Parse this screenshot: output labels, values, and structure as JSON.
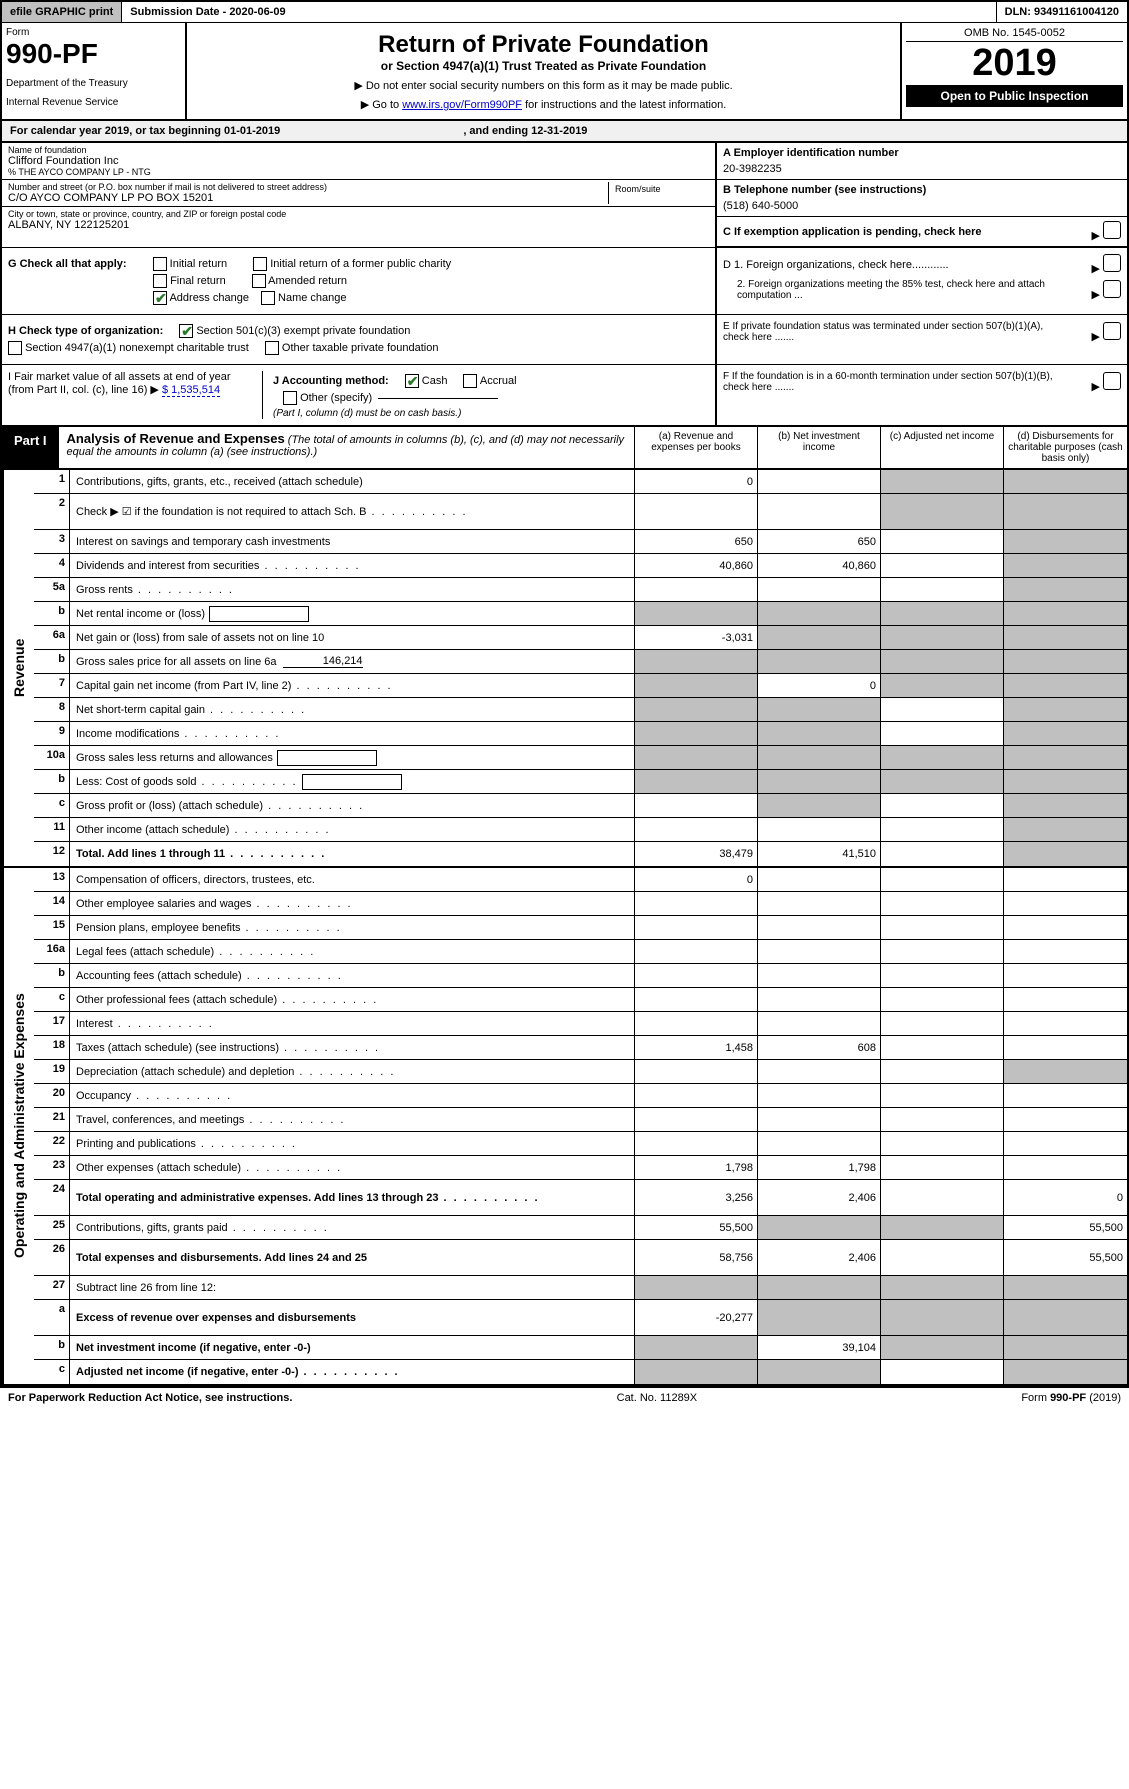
{
  "topbar": {
    "efile": "efile GRAPHIC print",
    "submission": "Submission Date - 2020-06-09",
    "dln": "DLN: 93491161004120"
  },
  "header": {
    "form_label": "Form",
    "form_number": "990-PF",
    "dept1": "Department of the Treasury",
    "dept2": "Internal Revenue Service",
    "title": "Return of Private Foundation",
    "subtitle": "or Section 4947(a)(1) Trust Treated as Private Foundation",
    "instr1": "▶ Do not enter social security numbers on this form as it may be made public.",
    "instr2_pre": "▶ Go to ",
    "instr2_link": "www.irs.gov/Form990PF",
    "instr2_post": " for instructions and the latest information.",
    "omb": "OMB No. 1545-0052",
    "year": "2019",
    "open_public": "Open to Public Inspection"
  },
  "calyear": {
    "text_pre": "For calendar year 2019, or tax beginning ",
    "begin": "01-01-2019",
    "text_mid": " , and ending ",
    "end": "12-31-2019"
  },
  "ident": {
    "name_label": "Name of foundation",
    "name": "Clifford Foundation Inc",
    "care_of": "% THE AYCO COMPANY LP - NTG",
    "addr_label": "Number and street (or P.O. box number if mail is not delivered to street address)",
    "addr": "C/O AYCO COMPANY LP PO BOX 15201",
    "room_label": "Room/suite",
    "room": "",
    "city_label": "City or town, state or province, country, and ZIP or foreign postal code",
    "city": "ALBANY, NY  122125201",
    "ein_label": "A Employer identification number",
    "ein": "20-3982235",
    "phone_label": "B Telephone number (see instructions)",
    "phone": "(518) 640-5000",
    "pending_label": "C If exemption application is pending, check here",
    "d1": "D 1. Foreign organizations, check here............",
    "d2": "2. Foreign organizations meeting the 85% test, check here and attach computation ...",
    "e": "E  If private foundation status was terminated under section 507(b)(1)(A), check here .......",
    "f": "F  If the foundation is in a 60-month termination under section 507(b)(1)(B), check here .......",
    "g_label": "G Check all that apply:",
    "g_initial": "Initial return",
    "g_initial_former": "Initial return of a former public charity",
    "g_final": "Final return",
    "g_amended": "Amended return",
    "g_address": "Address change",
    "g_name": "Name change",
    "h_label": "H Check type of organization:",
    "h_501c3": "Section 501(c)(3) exempt private foundation",
    "h_4947": "Section 4947(a)(1) nonexempt charitable trust",
    "h_other": "Other taxable private foundation",
    "i_label": "I Fair market value of all assets at end of year (from Part II, col. (c), line 16) ▶",
    "i_value": "$  1,535,514",
    "j_label": "J Accounting method:",
    "j_cash": "Cash",
    "j_accrual": "Accrual",
    "j_other": "Other (specify)",
    "j_note": "(Part I, column (d) must be on cash basis.)"
  },
  "part1": {
    "label": "Part I",
    "title": "Analysis of Revenue and Expenses",
    "note": "(The total of amounts in columns (b), (c), and (d) may not necessarily equal the amounts in column (a) (see instructions).)",
    "col_a": "(a)    Revenue and expenses per books",
    "col_b": "(b)  Net investment income",
    "col_c": "(c)  Adjusted net income",
    "col_d": "(d)  Disbursements for charitable purposes (cash basis only)"
  },
  "side_labels": {
    "revenue": "Revenue",
    "expenses": "Operating and Administrative Expenses"
  },
  "rows": [
    {
      "n": "1",
      "d": "Contributions, gifts, grants, etc., received (attach schedule)",
      "a": "0",
      "b": "",
      "c_s": true,
      "d_s": true
    },
    {
      "n": "2",
      "d": "Check ▶ ☑ if the foundation is not required to attach Sch. B",
      "a": "",
      "b": "",
      "c_s": true,
      "d_s": true,
      "tall": true,
      "dots": true
    },
    {
      "n": "3",
      "d": "Interest on savings and temporary cash investments",
      "a": "650",
      "b": "650",
      "c": "",
      "d_s": true
    },
    {
      "n": "4",
      "d": "Dividends and interest from securities",
      "a": "40,860",
      "b": "40,860",
      "c": "",
      "d_s": true,
      "dots": true
    },
    {
      "n": "5a",
      "d": "Gross rents",
      "a": "",
      "b": "",
      "c": "",
      "d_s": true,
      "dots": true
    },
    {
      "n": "b",
      "d": "Net rental income or (loss)",
      "a_s": true,
      "b_s": true,
      "c_s": true,
      "d_s": true,
      "inline": ""
    },
    {
      "n": "6a",
      "d": "Net gain or (loss) from sale of assets not on line 10",
      "a": "-3,031",
      "b_s": true,
      "c_s": true,
      "d_s": true
    },
    {
      "n": "b",
      "d": "Gross sales price for all assets on line 6a",
      "a_s": true,
      "b_s": true,
      "c_s": true,
      "d_s": true,
      "under": "146,214"
    },
    {
      "n": "7",
      "d": "Capital gain net income (from Part IV, line 2)",
      "a_s": true,
      "b": "0",
      "c_s": true,
      "d_s": true,
      "dots": true
    },
    {
      "n": "8",
      "d": "Net short-term capital gain",
      "a_s": true,
      "b_s": true,
      "c": "",
      "d_s": true,
      "dots": true
    },
    {
      "n": "9",
      "d": "Income modifications",
      "a_s": true,
      "b_s": true,
      "c": "",
      "d_s": true,
      "dots": true
    },
    {
      "n": "10a",
      "d": "Gross sales less returns and allowances",
      "a_s": true,
      "b_s": true,
      "c_s": true,
      "d_s": true,
      "inline": ""
    },
    {
      "n": "b",
      "d": "Less: Cost of goods sold",
      "a_s": true,
      "b_s": true,
      "c_s": true,
      "d_s": true,
      "inline": "",
      "dots": true
    },
    {
      "n": "c",
      "d": "Gross profit or (loss) (attach schedule)",
      "a": "",
      "b_s": true,
      "c": "",
      "d_s": true,
      "dots": true
    },
    {
      "n": "11",
      "d": "Other income (attach schedule)",
      "a": "",
      "b": "",
      "c": "",
      "d_s": true,
      "dots": true
    },
    {
      "n": "12",
      "d": "Total. Add lines 1 through 11",
      "a": "38,479",
      "b": "41,510",
      "c": "",
      "d_s": true,
      "bold": true,
      "dots": true
    }
  ],
  "exp_rows": [
    {
      "n": "13",
      "d": "",
      "a": "0",
      "b": "",
      "c": ""
    },
    {
      "n": "14",
      "d": "",
      "a": "",
      "b": "",
      "c": "",
      "dots": true
    },
    {
      "n": "15",
      "d": "",
      "a": "",
      "b": "",
      "c": "",
      "dots": true
    },
    {
      "n": "16a",
      "d": "",
      "a": "",
      "b": "",
      "c": "",
      "dots": true
    },
    {
      "n": "b",
      "d": "",
      "a": "",
      "b": "",
      "c": "",
      "dots": true
    },
    {
      "n": "c",
      "d": "",
      "a": "",
      "b": "",
      "c": "",
      "dots": true
    },
    {
      "n": "17",
      "d": "",
      "a": "",
      "b": "",
      "c": "",
      "dots": true
    },
    {
      "n": "18",
      "d": "",
      "a": "1,458",
      "b": "608",
      "c": "",
      "dots": true
    },
    {
      "n": "19",
      "d": "Depreciation (attach schedule) and depletion",
      "a": "",
      "b": "",
      "c": "",
      "d_s": true,
      "dots": true
    },
    {
      "n": "20",
      "d": "",
      "a": "",
      "b": "",
      "c": "",
      "dots": true
    },
    {
      "n": "21",
      "d": "",
      "a": "",
      "b": "",
      "c": "",
      "dots": true
    },
    {
      "n": "22",
      "d": "",
      "a": "",
      "b": "",
      "c": "",
      "dots": true
    },
    {
      "n": "23",
      "d": "",
      "a": "1,798",
      "b": "1,798",
      "c": "",
      "dots": true
    },
    {
      "n": "24",
      "d": "0",
      "a": "3,256",
      "b": "2,406",
      "c": "",
      "bold": true,
      "tall": true,
      "dots": true
    },
    {
      "n": "25",
      "d": "55,500",
      "a": "55,500",
      "b_s": true,
      "c_s": true,
      "dots": true
    },
    {
      "n": "26",
      "d": "55,500",
      "a": "58,756",
      "b": "2,406",
      "c": "",
      "bold": true,
      "tall": true
    },
    {
      "n": "27",
      "d": "Subtract line 26 from line 12:",
      "a_s": true,
      "b_s": true,
      "c_s": true,
      "d_s": true
    },
    {
      "n": "a",
      "d": "Excess of revenue over expenses and disbursements",
      "a": "-20,277",
      "b_s": true,
      "c_s": true,
      "d_s": true,
      "bold": true,
      "tall": true
    },
    {
      "n": "b",
      "d": "Net investment income (if negative, enter -0-)",
      "a_s": true,
      "b": "39,104",
      "c_s": true,
      "d_s": true,
      "bold": true
    },
    {
      "n": "c",
      "d": "Adjusted net income (if negative, enter -0-)",
      "a_s": true,
      "b_s": true,
      "c": "",
      "d_s": true,
      "bold": true,
      "dots": true
    }
  ],
  "footer": {
    "left": "For Paperwork Reduction Act Notice, see instructions.",
    "center": "Cat. No. 11289X",
    "right": "Form 990-PF (2019)"
  },
  "colors": {
    "shaded": "#c0c0c0",
    "link": "#0000cc",
    "check_green": "#2a7a2a",
    "black": "#000000",
    "white": "#ffffff"
  }
}
